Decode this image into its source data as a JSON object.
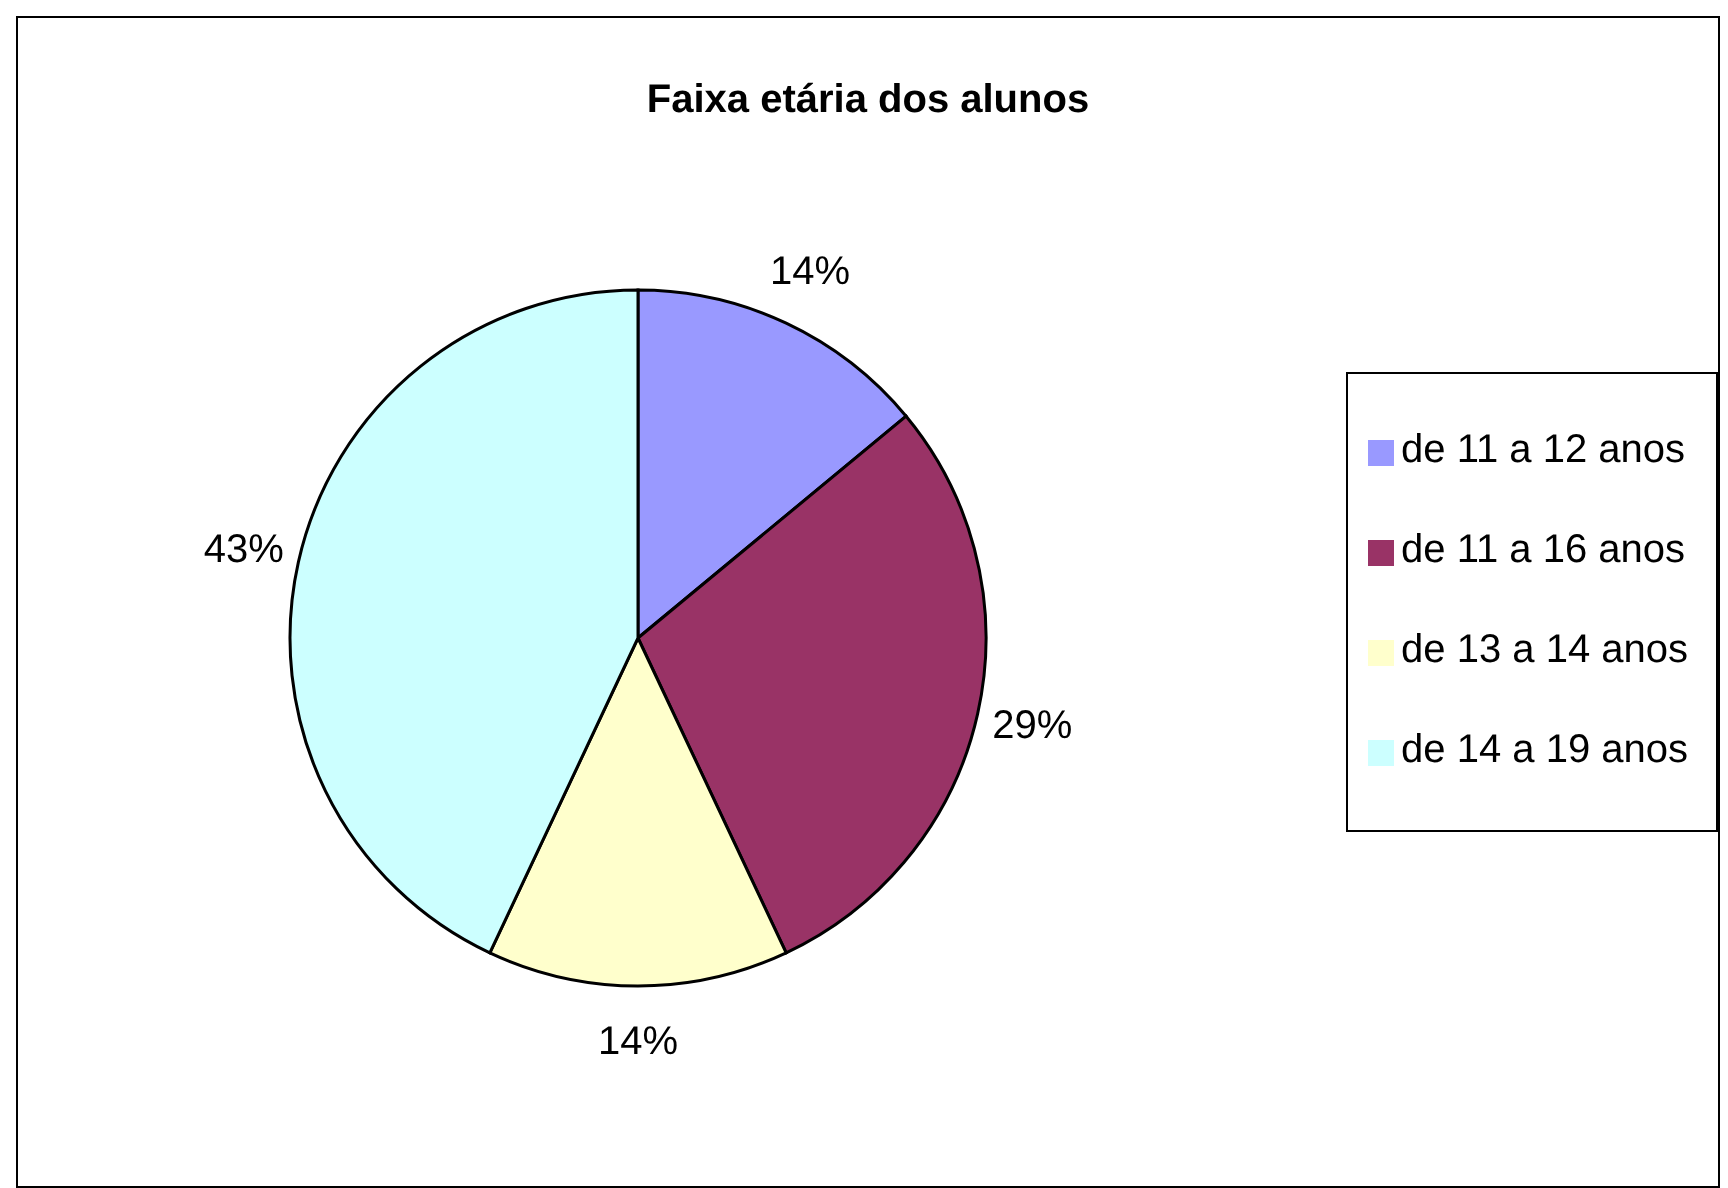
{
  "chart_data": {
    "type": "pie",
    "title": "Faixa etária dos alunos",
    "categories": [
      "de 11 a 12 anos",
      "de 11 a 16 anos",
      "de 13 a 14 anos",
      "de 14 a 19 anos"
    ],
    "values": [
      14,
      29,
      14,
      43
    ],
    "value_labels": [
      "14%",
      "29%",
      "14%",
      "43%"
    ],
    "colors": [
      "#9999ff",
      "#993366",
      "#ffffcc",
      "#ccffff"
    ],
    "legend": "right"
  }
}
